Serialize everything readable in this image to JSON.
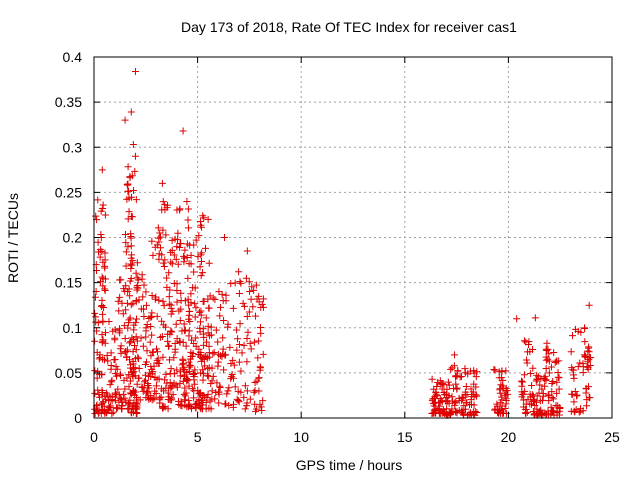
{
  "chart_data": {
    "type": "scatter",
    "title": "Day 173 of 2018, Rate Of TEC Index for receiver cas1",
    "xlabel": "GPS time / hours",
    "ylabel": "ROTI / TECUs",
    "xlim": [
      0,
      25
    ],
    "ylim": [
      0,
      0.4
    ],
    "grid": true,
    "marker": "+",
    "color": "#dd0000",
    "x_ticks": [
      0,
      5,
      10,
      15,
      20,
      25
    ],
    "x_tick_labels": [
      "0",
      "5",
      "10",
      "15",
      "20",
      "25"
    ],
    "y_ticks": [
      0,
      0.05,
      0.1,
      0.15,
      0.2,
      0.25,
      0.3,
      0.35,
      0.4
    ],
    "y_tick_labels": [
      "0",
      "0.05",
      "0.1",
      "0.15",
      "0.2",
      "0.25",
      "0.3",
      "0.35",
      "0.4"
    ],
    "notable_points": [
      {
        "x": 2.0,
        "y": 0.384
      },
      {
        "x": 1.8,
        "y": 0.339
      },
      {
        "x": 1.5,
        "y": 0.33
      },
      {
        "x": 4.3,
        "y": 0.318
      },
      {
        "x": 1.9,
        "y": 0.303
      },
      {
        "x": 2.0,
        "y": 0.29
      },
      {
        "x": 0.4,
        "y": 0.275
      },
      {
        "x": 3.3,
        "y": 0.26
      },
      {
        "x": 6.3,
        "y": 0.2
      },
      {
        "x": 7.4,
        "y": 0.185
      },
      {
        "x": 23.9,
        "y": 0.125
      },
      {
        "x": 20.4,
        "y": 0.11
      },
      {
        "x": 21.3,
        "y": 0.111
      },
      {
        "x": 17.4,
        "y": 0.07
      }
    ],
    "clusters": [
      {
        "x_range": [
          0.0,
          0.6
        ],
        "y_min": 0.005,
        "y_max": 0.245,
        "count": 90
      },
      {
        "x_range": [
          0.6,
          1.0
        ],
        "y_min": 0.005,
        "y_max": 0.11,
        "count": 25
      },
      {
        "x_range": [
          1.0,
          1.5
        ],
        "y_min": 0.01,
        "y_max": 0.16,
        "count": 50
      },
      {
        "x_range": [
          1.5,
          2.1
        ],
        "y_min": 0.005,
        "y_max": 0.28,
        "count": 130
      },
      {
        "x_range": [
          2.1,
          2.6
        ],
        "y_min": 0.02,
        "y_max": 0.16,
        "count": 40
      },
      {
        "x_range": [
          2.6,
          3.1
        ],
        "y_min": 0.02,
        "y_max": 0.21,
        "count": 45
      },
      {
        "x_range": [
          3.1,
          3.6
        ],
        "y_min": 0.01,
        "y_max": 0.24,
        "count": 55
      },
      {
        "x_range": [
          3.6,
          4.0
        ],
        "y_min": 0.02,
        "y_max": 0.21,
        "count": 45
      },
      {
        "x_range": [
          4.0,
          4.6
        ],
        "y_min": 0.01,
        "y_max": 0.25,
        "count": 85
      },
      {
        "x_range": [
          4.6,
          5.0
        ],
        "y_min": 0.01,
        "y_max": 0.2,
        "count": 45
      },
      {
        "x_range": [
          5.0,
          5.6
        ],
        "y_min": 0.01,
        "y_max": 0.23,
        "count": 85
      },
      {
        "x_range": [
          5.6,
          6.2
        ],
        "y_min": 0.01,
        "y_max": 0.14,
        "count": 35
      },
      {
        "x_range": [
          6.2,
          6.8
        ],
        "y_min": 0.01,
        "y_max": 0.16,
        "count": 30
      },
      {
        "x_range": [
          6.8,
          7.5
        ],
        "y_min": 0.01,
        "y_max": 0.18,
        "count": 35
      },
      {
        "x_range": [
          7.5,
          8.2
        ],
        "y_min": 0.005,
        "y_max": 0.15,
        "count": 40
      },
      {
        "x_range": [
          16.3,
          17.0
        ],
        "y_min": 0.005,
        "y_max": 0.045,
        "count": 50
      },
      {
        "x_range": [
          17.0,
          17.7
        ],
        "y_min": 0.003,
        "y_max": 0.06,
        "count": 45
      },
      {
        "x_range": [
          17.7,
          18.5
        ],
        "y_min": 0.003,
        "y_max": 0.055,
        "count": 50
      },
      {
        "x_range": [
          19.3,
          20.0
        ],
        "y_min": 0.005,
        "y_max": 0.06,
        "count": 45
      },
      {
        "x_range": [
          20.6,
          21.2
        ],
        "y_min": 0.005,
        "y_max": 0.09,
        "count": 35
      },
      {
        "x_range": [
          21.2,
          21.8
        ],
        "y_min": 0.003,
        "y_max": 0.05,
        "count": 40
      },
      {
        "x_range": [
          21.8,
          22.5
        ],
        "y_min": 0.003,
        "y_max": 0.085,
        "count": 55
      },
      {
        "x_range": [
          23.0,
          23.5
        ],
        "y_min": 0.005,
        "y_max": 0.1,
        "count": 25
      },
      {
        "x_range": [
          23.6,
          24.0
        ],
        "y_min": 0.005,
        "y_max": 0.1,
        "count": 30
      }
    ]
  }
}
